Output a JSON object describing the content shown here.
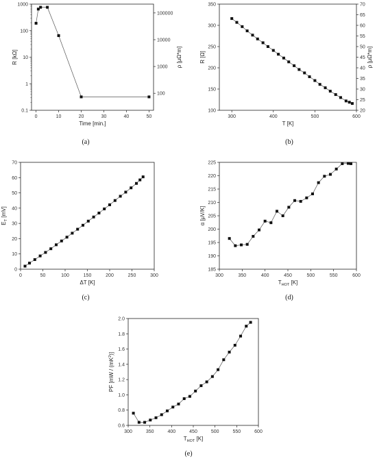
{
  "chart_data": [
    {
      "panel": "a",
      "type": "line",
      "caption": "(a)",
      "xlabel": "Time [min.]",
      "ylabel": "R [kΩ]",
      "ylabel_right": "ρ [μΩ*m]",
      "xlim": [
        -2,
        52
      ],
      "x_ticks": [
        "0",
        "10",
        "20",
        "30",
        "40",
        "50"
      ],
      "y_scale": "log",
      "ylim": [
        0.1,
        1000
      ],
      "y_ticks": [
        "0.1",
        "1",
        "10",
        "100",
        "1000"
      ],
      "y2_scale": "log",
      "y2_ticks": [
        "100",
        "1000",
        "10000",
        "100000"
      ],
      "grid": false,
      "series": [
        {
          "x": [
            0,
            1,
            2,
            5,
            10,
            20,
            50
          ],
          "y": [
            190,
            650,
            760,
            760,
            65,
            0.32,
            0.32
          ]
        }
      ]
    },
    {
      "panel": "b",
      "type": "line",
      "caption": "(b)",
      "xlabel": "T [K]",
      "ylabel": "R [Ω]",
      "ylabel_right": "ρ [μΩ*m]",
      "xlim": [
        270,
        600
      ],
      "x_ticks": [
        "300",
        "400",
        "500",
        "600"
      ],
      "ylim": [
        100,
        350
      ],
      "y_ticks": [
        "100",
        "150",
        "200",
        "250",
        "300",
        "350"
      ],
      "y2_ticks": [
        "20",
        "25",
        "30",
        "35",
        "40",
        "45",
        "50",
        "55",
        "60",
        "65",
        "70"
      ],
      "grid": false,
      "series": [
        {
          "x": [
            300,
            312,
            325,
            337,
            350,
            362,
            375,
            387,
            400,
            412,
            425,
            437,
            450,
            462,
            475,
            487,
            500,
            512,
            525,
            537,
            550,
            562,
            575,
            583,
            590
          ],
          "y": [
            316,
            307,
            297,
            287,
            277,
            268,
            259,
            250,
            241,
            232,
            223,
            214,
            205,
            196,
            188,
            179,
            170,
            161,
            153,
            145,
            137,
            130,
            122,
            119,
            116
          ]
        }
      ]
    },
    {
      "panel": "c",
      "type": "line",
      "caption": "(c)",
      "xlabel": "ΔT [K]",
      "ylabel": "E [mV]",
      "ylabel_sub": "T",
      "xlim": [
        0,
        300
      ],
      "x_ticks": [
        "0",
        "50",
        "100",
        "150",
        "200",
        "250",
        "300"
      ],
      "ylim": [
        0,
        70
      ],
      "y_ticks": [
        "0",
        "10",
        "20",
        "30",
        "40",
        "50",
        "60",
        "70"
      ],
      "grid": false,
      "series": [
        {
          "x": [
            10,
            20,
            32,
            44,
            56,
            68,
            80,
            92,
            104,
            116,
            128,
            140,
            152,
            164,
            176,
            188,
            200,
            212,
            224,
            236,
            248,
            260,
            268,
            275
          ],
          "y": [
            2,
            4,
            6.3,
            8.7,
            11,
            13.4,
            16,
            18.5,
            21,
            23.6,
            26.2,
            28.8,
            31.5,
            34.2,
            36.8,
            39.5,
            42.2,
            45,
            47.8,
            50.5,
            53.3,
            56.2,
            58.5,
            60.5
          ]
        }
      ]
    },
    {
      "panel": "d",
      "type": "line",
      "caption": "(d)",
      "xlabel": "T [K]",
      "xlabel_sub": "HOT",
      "ylabel": "α [μV/K]",
      "xlim": [
        300,
        600
      ],
      "x_ticks": [
        "300",
        "350",
        "400",
        "450",
        "500",
        "550",
        "600"
      ],
      "ylim": [
        185,
        225
      ],
      "y_ticks": [
        "185",
        "190",
        "195",
        "200",
        "205",
        "210",
        "215",
        "220",
        "225"
      ],
      "grid": false,
      "series": [
        {
          "x": [
            322,
            335,
            348,
            361,
            374,
            387,
            400,
            413,
            426,
            439,
            452,
            465,
            478,
            491,
            504,
            517,
            530,
            543,
            556,
            569,
            582,
            588
          ],
          "y": [
            196.5,
            193.8,
            194.1,
            194.3,
            197.3,
            199.7,
            203,
            202.4,
            206.7,
            205,
            208.2,
            210.7,
            210.4,
            211.7,
            213.2,
            217.4,
            219.8,
            220.5,
            222.5,
            224.5,
            224.6,
            224.5
          ]
        }
      ]
    },
    {
      "panel": "e",
      "type": "line",
      "caption": "(e)",
      "xlabel": "T [K]",
      "xlabel_sub": "HOT",
      "ylabel": "PF [mW / (mK )]",
      "ylabel_sup": "2",
      "xlim": [
        300,
        600
      ],
      "x_ticks": [
        "300",
        "350",
        "400",
        "450",
        "500",
        "550",
        "600"
      ],
      "ylim": [
        0.6,
        2.0
      ],
      "y_ticks": [
        "0.6",
        "0.8",
        "1.0",
        "1.2",
        "1.4",
        "1.6",
        "1.8",
        "2.0"
      ],
      "grid": false,
      "series": [
        {
          "x": [
            312,
            325,
            338,
            351,
            364,
            377,
            390,
            403,
            416,
            429,
            442,
            455,
            468,
            481,
            494,
            507,
            520,
            533,
            546,
            559,
            572,
            582
          ],
          "y": [
            0.76,
            0.64,
            0.64,
            0.67,
            0.7,
            0.74,
            0.79,
            0.84,
            0.88,
            0.95,
            0.98,
            1.05,
            1.12,
            1.17,
            1.24,
            1.33,
            1.46,
            1.56,
            1.65,
            1.77,
            1.9,
            1.95
          ]
        }
      ]
    }
  ]
}
